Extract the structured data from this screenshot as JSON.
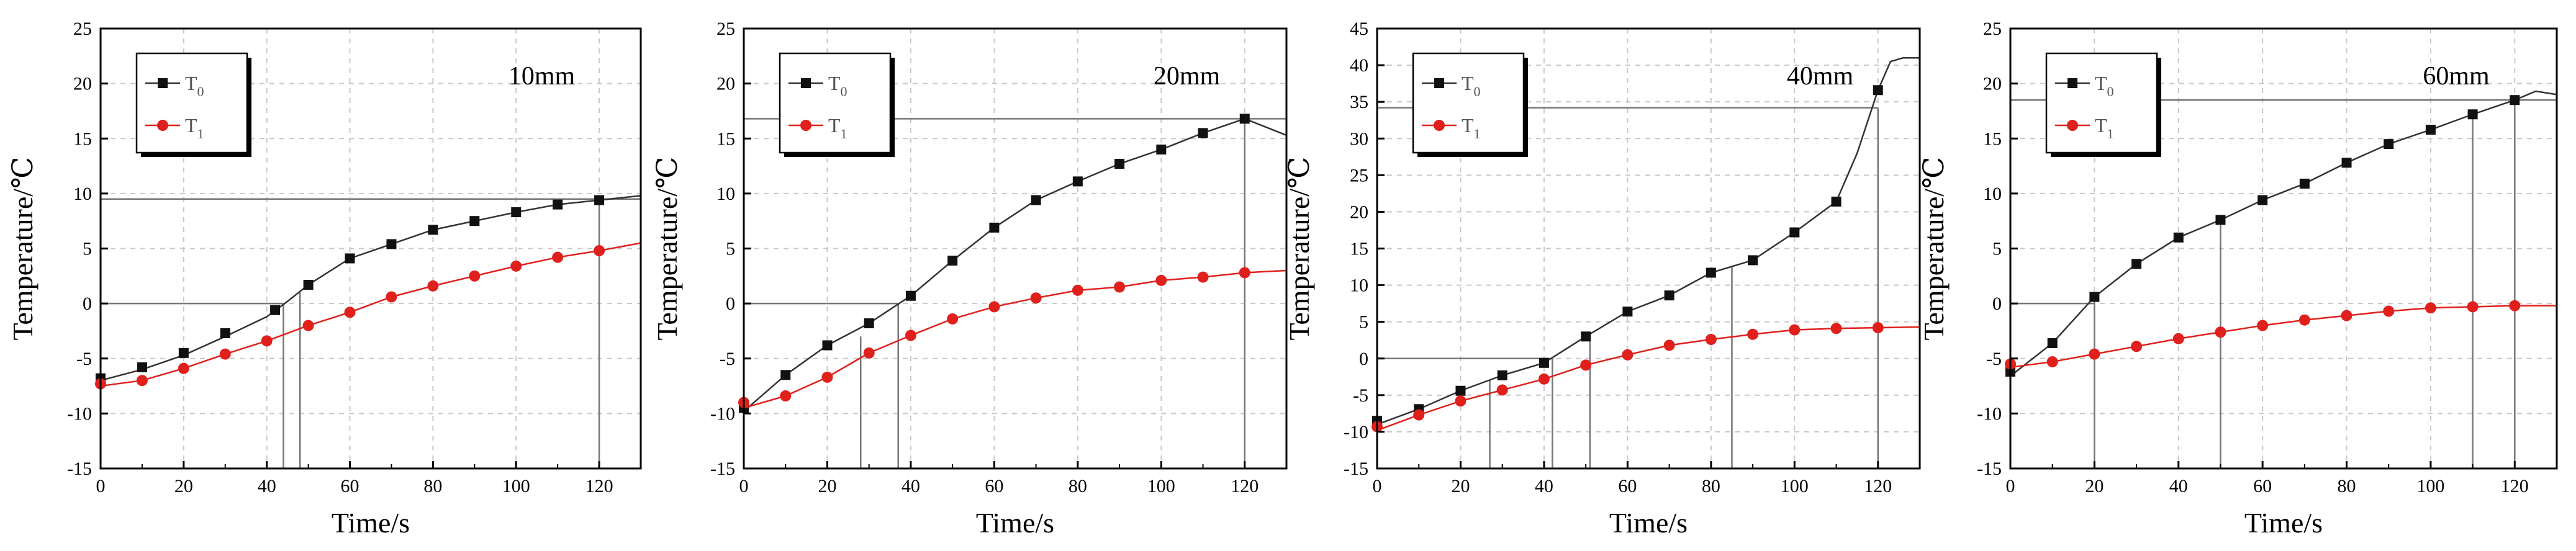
{
  "figure": {
    "legend_labels": [
      "T0",
      "T1"
    ]
  },
  "colors": {
    "t0": "#111111",
    "t1": "#e0201c",
    "axis": "#000000",
    "grid": "#c8c8c8",
    "ref": "#777777"
  },
  "chart_data": [
    {
      "type": "line",
      "title": "10mm",
      "annotation": "10mm",
      "xlabel": "Time/s",
      "ylabel": "Temperature/℃",
      "xlim": [
        0,
        130
      ],
      "ylim": [
        -15,
        25
      ],
      "xticks": [
        0,
        20,
        40,
        60,
        80,
        100,
        120
      ],
      "yticks": [
        -15,
        -10,
        -5,
        0,
        5,
        10,
        15,
        20,
        25
      ],
      "grid": true,
      "legend": "top-left",
      "series": [
        {
          "name": "T0",
          "marker": "square",
          "x": [
            0,
            10,
            20,
            30,
            42,
            50,
            60,
            70,
            80,
            90,
            100,
            110,
            120
          ],
          "y": [
            -6.8,
            -5.8,
            -4.5,
            -2.7,
            -0.6,
            1.7,
            4.1,
            5.4,
            6.7,
            7.5,
            8.3,
            9.0,
            9.4
          ],
          "curve_x": [
            0,
            10,
            20,
            30,
            40,
            45,
            50,
            60,
            70,
            80,
            90,
            100,
            110,
            120,
            130
          ],
          "curve_y": [
            -7.0,
            -6.0,
            -4.7,
            -3.0,
            -1.2,
            0.2,
            1.7,
            4.1,
            5.4,
            6.7,
            7.5,
            8.3,
            9.0,
            9.4,
            9.8
          ]
        },
        {
          "name": "T1",
          "marker": "circle",
          "x": [
            0,
            10,
            20,
            30,
            40,
            50,
            60,
            70,
            80,
            90,
            100,
            110,
            120
          ],
          "y": [
            -7.3,
            -7.0,
            -5.9,
            -4.6,
            -3.4,
            -2.0,
            -0.8,
            0.6,
            1.6,
            2.5,
            3.4,
            4.2,
            4.8
          ],
          "curve_x": [
            0,
            10,
            20,
            30,
            40,
            50,
            60,
            70,
            80,
            90,
            100,
            110,
            120,
            130
          ],
          "curve_y": [
            -7.5,
            -7.0,
            -5.9,
            -4.6,
            -3.4,
            -2.0,
            -0.8,
            0.6,
            1.6,
            2.5,
            3.4,
            4.2,
            4.8,
            5.5
          ]
        }
      ],
      "hlines": [
        {
          "y": 0,
          "x0": 0,
          "x1": 44
        },
        {
          "y": 9.5,
          "x0": 0,
          "x1": 130
        }
      ],
      "vlines": [
        {
          "x": 44,
          "y0": -15,
          "y1": 0
        },
        {
          "x": 48,
          "y0": -15,
          "y1": 1.0
        },
        {
          "x": 120,
          "y0": -15,
          "y1": 9.5
        }
      ]
    },
    {
      "type": "line",
      "title": "20mm",
      "annotation": "20mm",
      "xlabel": "Time/s",
      "ylabel": "Temperature/℃",
      "xlim": [
        0,
        130
      ],
      "ylim": [
        -15,
        25
      ],
      "xticks": [
        0,
        20,
        40,
        60,
        80,
        100,
        120
      ],
      "yticks": [
        -15,
        -10,
        -5,
        0,
        5,
        10,
        15,
        20,
        25
      ],
      "grid": true,
      "legend": "top-left",
      "series": [
        {
          "name": "T0",
          "marker": "square",
          "x": [
            0,
            10,
            20,
            30,
            40,
            50,
            60,
            70,
            80,
            90,
            100,
            110,
            120
          ],
          "y": [
            -9.5,
            -6.5,
            -3.8,
            -1.8,
            0.7,
            3.9,
            6.9,
            9.4,
            11.1,
            12.7,
            14.0,
            15.5,
            16.8
          ],
          "curve_x": [
            0,
            10,
            20,
            30,
            40,
            50,
            60,
            70,
            80,
            90,
            100,
            110,
            120,
            130
          ],
          "curve_y": [
            -9.8,
            -6.5,
            -3.8,
            -1.8,
            0.7,
            3.9,
            6.9,
            9.4,
            11.1,
            12.7,
            14.0,
            15.5,
            16.8,
            15.3
          ]
        },
        {
          "name": "T1",
          "marker": "circle",
          "x": [
            0,
            10,
            20,
            30,
            40,
            50,
            60,
            70,
            80,
            90,
            100,
            110,
            120
          ],
          "y": [
            -9.0,
            -8.4,
            -6.7,
            -4.5,
            -2.9,
            -1.4,
            -0.3,
            0.5,
            1.2,
            1.5,
            2.1,
            2.4,
            2.8
          ],
          "curve_x": [
            0,
            10,
            20,
            30,
            40,
            50,
            60,
            70,
            80,
            90,
            100,
            110,
            120,
            130
          ],
          "curve_y": [
            -9.5,
            -8.4,
            -6.7,
            -4.5,
            -2.9,
            -1.4,
            -0.3,
            0.5,
            1.2,
            1.5,
            2.1,
            2.4,
            2.8,
            3.0
          ]
        }
      ],
      "hlines": [
        {
          "y": 0,
          "x0": 0,
          "x1": 37
        },
        {
          "y": 16.8,
          "x0": 0,
          "x1": 130
        }
      ],
      "vlines": [
        {
          "x": 28,
          "y0": -15,
          "y1": -3.0
        },
        {
          "x": 37,
          "y0": -15,
          "y1": 0
        },
        {
          "x": 120,
          "y0": -15,
          "y1": 16.8
        }
      ]
    },
    {
      "type": "line",
      "title": "40mm",
      "annotation": "40mm",
      "xlabel": "Time/s",
      "ylabel": "Temperature/℃",
      "xlim": [
        0,
        130
      ],
      "ylim": [
        -15,
        45
      ],
      "xticks": [
        0,
        20,
        40,
        60,
        80,
        100,
        120
      ],
      "yticks": [
        -15,
        -10,
        -5,
        0,
        5,
        10,
        15,
        20,
        25,
        30,
        35,
        40,
        45
      ],
      "grid": true,
      "legend": "top-left",
      "series": [
        {
          "name": "T0",
          "marker": "square",
          "x": [
            0,
            10,
            20,
            30,
            40,
            50,
            60,
            70,
            80,
            90,
            100,
            110,
            120
          ],
          "y": [
            -8.5,
            -6.9,
            -4.4,
            -2.3,
            -0.6,
            3.0,
            6.4,
            8.6,
            11.7,
            13.4,
            17.2,
            21.4,
            36.6
          ],
          "curve_x": [
            0,
            10,
            20,
            30,
            40,
            50,
            60,
            70,
            80,
            90,
            100,
            110,
            115,
            120,
            123,
            126,
            130
          ],
          "curve_y": [
            -9.0,
            -6.9,
            -4.4,
            -2.3,
            -0.6,
            3.0,
            6.4,
            8.6,
            11.7,
            13.4,
            17.2,
            21.4,
            28.0,
            36.6,
            40.5,
            41.0,
            41.0
          ]
        },
        {
          "name": "T1",
          "marker": "circle",
          "x": [
            0,
            10,
            20,
            30,
            40,
            50,
            60,
            70,
            80,
            90,
            100,
            110,
            120
          ],
          "y": [
            -9.3,
            -7.7,
            -5.8,
            -4.3,
            -2.8,
            -0.9,
            0.5,
            1.8,
            2.6,
            3.3,
            3.9,
            4.1,
            4.2
          ],
          "curve_x": [
            0,
            10,
            20,
            30,
            40,
            50,
            60,
            70,
            80,
            90,
            100,
            110,
            120,
            130
          ],
          "curve_y": [
            -9.8,
            -7.7,
            -5.8,
            -4.3,
            -2.8,
            -0.9,
            0.5,
            1.8,
            2.6,
            3.3,
            3.9,
            4.1,
            4.2,
            4.3
          ]
        }
      ],
      "hlines": [
        {
          "y": 0,
          "x0": 0,
          "x1": 42
        },
        {
          "y": 34.2,
          "x0": 0,
          "x1": 120
        }
      ],
      "vlines": [
        {
          "x": 27,
          "y0": -15,
          "y1": -3.0
        },
        {
          "x": 42,
          "y0": -15,
          "y1": 0
        },
        {
          "x": 51,
          "y0": -15,
          "y1": 3.0
        },
        {
          "x": 85,
          "y0": -15,
          "y1": 12.5
        },
        {
          "x": 120,
          "y0": -15,
          "y1": 34.2
        }
      ]
    },
    {
      "type": "line",
      "title": "60mm",
      "annotation": "60mm",
      "xlabel": "Time/s",
      "ylabel": "Temperature/℃",
      "xlim": [
        0,
        130
      ],
      "ylim": [
        -15,
        25
      ],
      "xticks": [
        0,
        20,
        40,
        60,
        80,
        100,
        120
      ],
      "yticks": [
        -15,
        -10,
        -5,
        0,
        5,
        10,
        15,
        20,
        25
      ],
      "grid": true,
      "legend": "top-left",
      "series": [
        {
          "name": "T0",
          "marker": "square",
          "x": [
            0,
            10,
            20,
            30,
            40,
            50,
            60,
            70,
            80,
            90,
            100,
            110,
            120
          ],
          "y": [
            -6.2,
            -3.6,
            0.6,
            3.6,
            6.0,
            7.6,
            9.4,
            10.9,
            12.8,
            14.5,
            15.8,
            17.2,
            18.5
          ],
          "curve_x": [
            0,
            10,
            20,
            30,
            40,
            50,
            60,
            70,
            80,
            90,
            100,
            110,
            120,
            125,
            130
          ],
          "curve_y": [
            -6.6,
            -3.6,
            0.6,
            3.6,
            6.0,
            7.6,
            9.4,
            10.9,
            12.8,
            14.5,
            15.8,
            17.2,
            18.5,
            19.3,
            19.0
          ]
        },
        {
          "name": "T1",
          "marker": "circle",
          "x": [
            0,
            10,
            20,
            30,
            40,
            50,
            60,
            70,
            80,
            90,
            100,
            110,
            120
          ],
          "y": [
            -5.5,
            -5.3,
            -4.6,
            -3.9,
            -3.2,
            -2.6,
            -2.0,
            -1.5,
            -1.1,
            -0.7,
            -0.4,
            -0.3,
            -0.2
          ],
          "curve_x": [
            0,
            10,
            20,
            30,
            40,
            50,
            60,
            70,
            80,
            90,
            100,
            110,
            120,
            130
          ],
          "curve_y": [
            -5.8,
            -5.3,
            -4.6,
            -3.9,
            -3.2,
            -2.6,
            -2.0,
            -1.5,
            -1.1,
            -0.7,
            -0.4,
            -0.3,
            -0.2,
            -0.2
          ]
        }
      ],
      "hlines": [
        {
          "y": 0,
          "x0": 0,
          "x1": 20
        },
        {
          "y": 18.5,
          "x0": 0,
          "x1": 130
        }
      ],
      "vlines": [
        {
          "x": 20,
          "y0": -15,
          "y1": 0.6
        },
        {
          "x": 50,
          "y0": -15,
          "y1": 7.6
        },
        {
          "x": 110,
          "y0": -15,
          "y1": 17.2
        },
        {
          "x": 120,
          "y0": -15,
          "y1": 18.5
        }
      ]
    }
  ]
}
